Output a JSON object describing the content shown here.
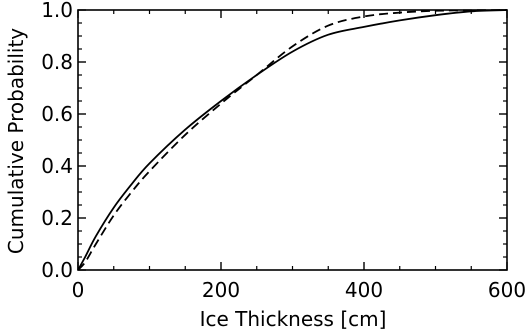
{
  "chart_data": {
    "type": "line",
    "title": "",
    "xlabel": "Ice Thickness [cm]",
    "ylabel": "Cumulative Probability",
    "xlim": [
      0,
      600
    ],
    "ylim": [
      0.0,
      1.0
    ],
    "x_ticks": [
      0,
      200,
      400,
      600
    ],
    "x_tick_labels": [
      "0",
      "200",
      "400",
      "600"
    ],
    "y_ticks": [
      0.0,
      0.2,
      0.4,
      0.6,
      0.8,
      1.0
    ],
    "y_tick_labels": [
      "0.0",
      "0.2",
      "0.4",
      "0.6",
      "0.8",
      "1.0"
    ],
    "grid": false,
    "legend": "none",
    "series": [
      {
        "style": "solid",
        "color": "#000000",
        "x": [
          0,
          10,
          25,
          50,
          75,
          100,
          150,
          200,
          250,
          300,
          350,
          400,
          450,
          500,
          550,
          600
        ],
        "y": [
          0.0,
          0.05,
          0.13,
          0.24,
          0.33,
          0.41,
          0.54,
          0.65,
          0.75,
          0.84,
          0.905,
          0.935,
          0.96,
          0.98,
          0.995,
          1.0
        ]
      },
      {
        "style": "dashed",
        "color": "#000000",
        "x": [
          0,
          10,
          25,
          50,
          75,
          100,
          150,
          200,
          250,
          300,
          350,
          400,
          450,
          500,
          550,
          600
        ],
        "y": [
          0.0,
          0.03,
          0.1,
          0.21,
          0.3,
          0.38,
          0.52,
          0.64,
          0.75,
          0.86,
          0.94,
          0.975,
          0.99,
          0.997,
          0.999,
          1.0
        ]
      }
    ]
  }
}
